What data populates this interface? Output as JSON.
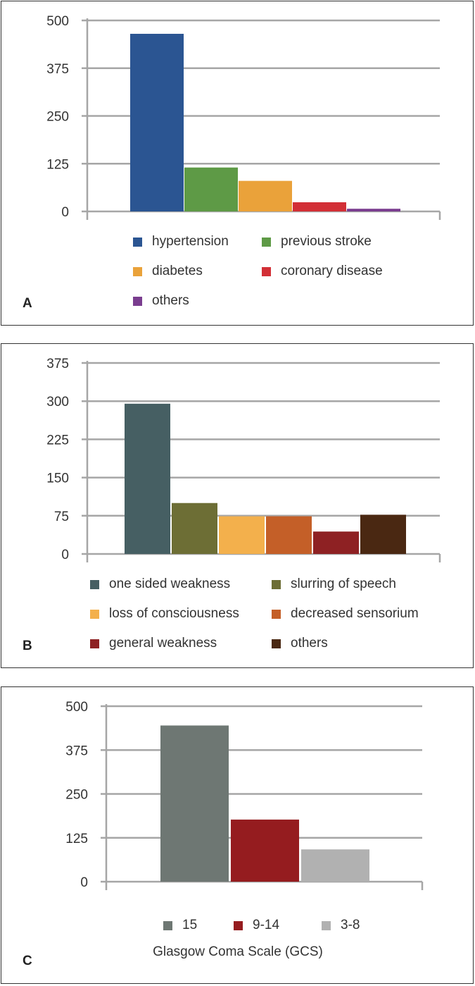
{
  "chart_data": [
    {
      "panel": "A",
      "type": "bar",
      "title": "",
      "xlabel": "",
      "ylabel": "",
      "ylim": [
        0,
        500
      ],
      "yticks": [
        "0",
        "125",
        "250",
        "375",
        "500"
      ],
      "grid": true,
      "legend_position": "bottom",
      "categories": [
        "hypertension",
        "previous stroke",
        "diabetes",
        "coronary disease",
        "others"
      ],
      "values": [
        465,
        115,
        80,
        24,
        7
      ],
      "colors": [
        "#2b5592",
        "#5e9a46",
        "#eaa23a",
        "#d22f36",
        "#7a3d8f"
      ]
    },
    {
      "panel": "B",
      "type": "bar",
      "title": "",
      "xlabel": "",
      "ylabel": "",
      "ylim": [
        0,
        375
      ],
      "yticks": [
        "0",
        "75",
        "150",
        "225",
        "300",
        "375"
      ],
      "grid": true,
      "legend_position": "bottom",
      "categories": [
        "one sided weakness",
        "slurring of speech",
        "loss of consciousness",
        "decreased sensorium",
        "general weakness",
        "others"
      ],
      "values": [
        295,
        100,
        74,
        74,
        44,
        77
      ],
      "colors": [
        "#465f63",
        "#6d6e35",
        "#f3b04c",
        "#c45f28",
        "#8e2123",
        "#4a2812"
      ]
    },
    {
      "panel": "C",
      "type": "bar",
      "title": "",
      "xlabel": "Glasgow Coma Scale (GCS)",
      "ylabel": "",
      "ylim": [
        0,
        500
      ],
      "yticks": [
        "0",
        "125",
        "250",
        "375",
        "500"
      ],
      "grid": true,
      "legend_position": "bottom",
      "categories": [
        "15",
        "9-14",
        "3-8"
      ],
      "values": [
        445,
        177,
        92
      ],
      "colors": [
        "#6e7773",
        "#951c1f",
        "#b1b1b1"
      ]
    }
  ],
  "colors": {
    "grid": "#a6a6a6",
    "axis": "#a6a6a6",
    "text": "#333333",
    "border": "#333333"
  }
}
